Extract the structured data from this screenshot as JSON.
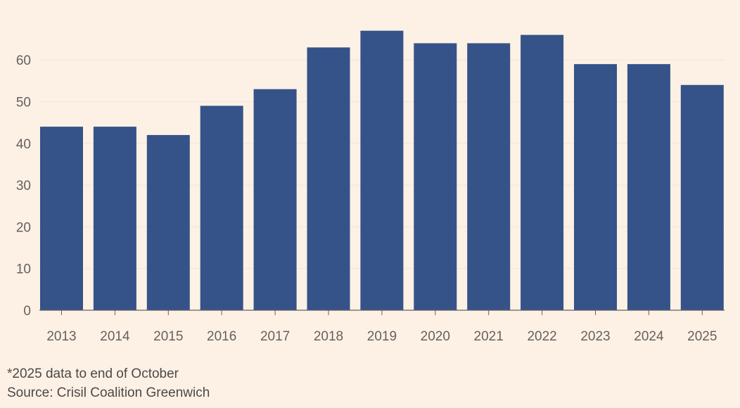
{
  "chart_data": {
    "type": "bar",
    "categories": [
      "2013",
      "2014",
      "2015",
      "2016",
      "2017",
      "2018",
      "2019",
      "2020",
      "2021",
      "2022",
      "2023",
      "2024",
      "2025"
    ],
    "values": [
      44,
      44,
      42,
      49,
      53,
      63,
      67,
      64,
      64,
      66,
      59,
      59,
      54
    ],
    "title": "",
    "xlabel": "",
    "ylabel": "",
    "ylim": [
      0,
      70
    ],
    "yticks": [
      0,
      10,
      20,
      30,
      40,
      50,
      60
    ],
    "ytick_labels": [
      "0",
      "10",
      "20",
      "30",
      "40",
      "50",
      "60"
    ],
    "grid": true
  },
  "footnotes": {
    "note": "*2025 data to end of October",
    "source": "Source: Crisil Coalition Greenwich"
  },
  "colors": {
    "bar": "#355388",
    "background": "#fdf1e6",
    "grid": "#efe5dc",
    "axis": "#66605c",
    "text": "#66605c"
  }
}
